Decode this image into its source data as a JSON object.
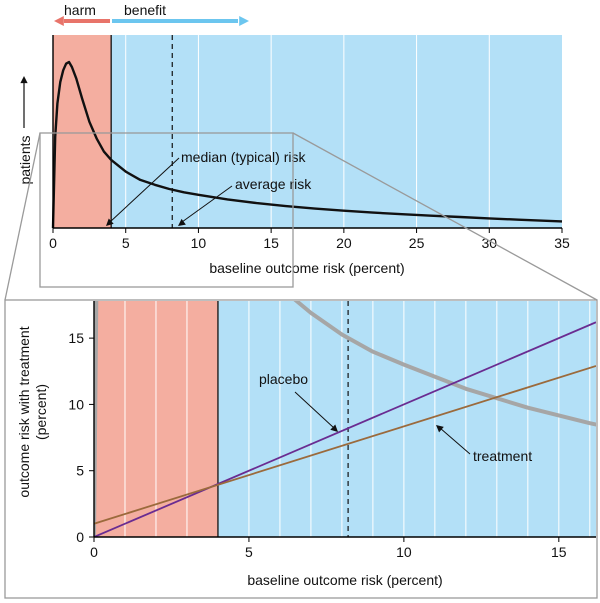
{
  "colors": {
    "harm": "#f4aea0",
    "benefit": "#b3e0f7",
    "harm_arrow": "#e8746a",
    "benefit_arrow": "#6cc6ef",
    "grid": "#ffffff",
    "distribution": "#111111",
    "faded_distribution": "#a6a6a6",
    "placebo": "#6a2c91",
    "treatment": "#9b6a3c",
    "zoom_box": "#9a9a9a",
    "axis": "#000000"
  },
  "legend": {
    "harm": "harm",
    "benefit": "benefit"
  },
  "chart_data": [
    {
      "type": "area",
      "ylabel": "patients",
      "xlabel": "baseline outcome risk (percent)",
      "xlim": [
        0,
        35
      ],
      "xticks": [
        "0",
        "5",
        "10",
        "15",
        "20",
        "25",
        "30",
        "35"
      ],
      "regions": [
        {
          "name": "harm",
          "from": 0,
          "to": 4
        },
        {
          "name": "benefit",
          "from": 4,
          "to": 35
        }
      ],
      "distribution_curve": {
        "x": [
          0,
          0.15,
          0.3,
          0.5,
          0.7,
          0.9,
          1.1,
          1.3,
          1.6,
          2,
          2.5,
          3,
          3.5,
          4,
          5,
          6,
          7,
          8,
          9,
          10,
          12,
          14,
          16,
          18,
          20,
          22,
          24,
          26,
          28,
          30,
          32,
          35
        ],
        "y": [
          0,
          0.55,
          0.75,
          0.88,
          0.95,
          0.99,
          1.0,
          0.97,
          0.9,
          0.78,
          0.64,
          0.54,
          0.46,
          0.41,
          0.34,
          0.29,
          0.26,
          0.235,
          0.215,
          0.2,
          0.172,
          0.15,
          0.132,
          0.117,
          0.104,
          0.093,
          0.083,
          0.074,
          0.066,
          0.058,
          0.05,
          0.04
        ]
      },
      "median_risk": 4,
      "average_risk": 8.2,
      "annotations": [
        "median (typical) risk",
        "average risk"
      ]
    },
    {
      "type": "line",
      "ylabel": "outcome risk with treatment\n(percent)",
      "xlabel": "baseline outcome risk (percent)",
      "xlim": [
        0,
        16.2
      ],
      "ylim": [
        0,
        17.8
      ],
      "xticks": [
        "0",
        "5",
        "10",
        "15"
      ],
      "yticks": [
        "0",
        "5",
        "10",
        "15"
      ],
      "regions": [
        {
          "name": "harm",
          "from": 0,
          "to": 4
        },
        {
          "name": "benefit",
          "from": 4,
          "to": 16.2
        }
      ],
      "series": [
        {
          "name": "placebo",
          "x": [
            0,
            16.2
          ],
          "y": [
            0,
            16.2
          ]
        },
        {
          "name": "treatment",
          "x": [
            0,
            16.2
          ],
          "y": [
            1,
            12.9
          ]
        }
      ],
      "average_risk": 8.2,
      "annotations": [
        "placebo",
        "treatment"
      ]
    }
  ]
}
